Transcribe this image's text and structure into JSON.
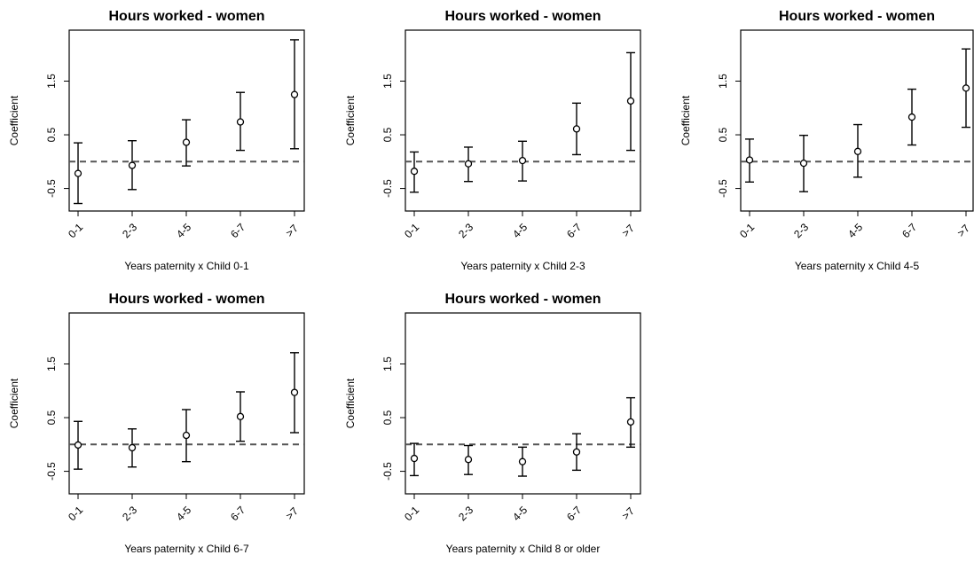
{
  "chart_data": [
    {
      "type": "scatter",
      "title": "Hours worked - women",
      "xlabel": "Years paternity x Child 0-1",
      "ylabel": "Coefficient",
      "categories": [
        "0-1",
        "2-3",
        "4-5",
        "6-7",
        ">7"
      ],
      "yticks": [
        "-0.5",
        "0.5",
        "1.5"
      ],
      "ylim": [
        -0.92,
        2.45
      ],
      "reference_line": 0,
      "values": [
        -0.22,
        -0.07,
        0.36,
        0.74,
        1.25
      ],
      "lower": [
        -0.78,
        -0.52,
        -0.08,
        0.21,
        0.24
      ],
      "upper": [
        0.35,
        0.39,
        0.78,
        1.29,
        2.27
      ]
    },
    {
      "type": "scatter",
      "title": "Hours worked - women",
      "xlabel": "Years paternity x Child 2-3",
      "ylabel": "Coefficient",
      "categories": [
        "0-1",
        "2-3",
        "4-5",
        "6-7",
        ">7"
      ],
      "yticks": [
        "-0.5",
        "0.5",
        "1.5"
      ],
      "ylim": [
        -0.92,
        2.45
      ],
      "reference_line": 0,
      "values": [
        -0.18,
        -0.04,
        0.02,
        0.61,
        1.13
      ],
      "lower": [
        -0.57,
        -0.37,
        -0.36,
        0.13,
        0.21
      ],
      "upper": [
        0.18,
        0.27,
        0.38,
        1.09,
        2.03
      ]
    },
    {
      "type": "scatter",
      "title": "Hours worked - women",
      "xlabel": "Years paternity x Child 4-5",
      "ylabel": "Coefficient",
      "categories": [
        "0-1",
        "2-3",
        "4-5",
        "6-7",
        ">7"
      ],
      "yticks": [
        "-0.5",
        "0.5",
        "1.5"
      ],
      "ylim": [
        -0.92,
        2.45
      ],
      "reference_line": 0,
      "values": [
        0.03,
        -0.03,
        0.19,
        0.83,
        1.37
      ],
      "lower": [
        -0.38,
        -0.56,
        -0.29,
        0.31,
        0.64
      ],
      "upper": [
        0.42,
        0.49,
        0.69,
        1.35,
        2.1
      ]
    },
    {
      "type": "scatter",
      "title": "Hours worked - women",
      "xlabel": "Years paternity x Child 6-7",
      "ylabel": "Coefficient",
      "categories": [
        "0-1",
        "2-3",
        "4-5",
        "6-7",
        ">7"
      ],
      "yticks": [
        "-0.5",
        "0.5",
        "1.5"
      ],
      "ylim": [
        -0.92,
        2.45
      ],
      "reference_line": 0,
      "values": [
        -0.01,
        -0.06,
        0.17,
        0.52,
        0.97
      ],
      "lower": [
        -0.46,
        -0.42,
        -0.32,
        0.06,
        0.22
      ],
      "upper": [
        0.43,
        0.29,
        0.65,
        0.98,
        1.71
      ]
    },
    {
      "type": "scatter",
      "title": "Hours worked - women",
      "xlabel": "Years paternity x Child 8 or older",
      "ylabel": "Coefficient",
      "categories": [
        "0-1",
        "2-3",
        "4-5",
        "6-7",
        ">7"
      ],
      "yticks": [
        "-0.5",
        "0.5",
        "1.5"
      ],
      "ylim": [
        -0.92,
        2.45
      ],
      "reference_line": 0,
      "values": [
        -0.26,
        -0.28,
        -0.32,
        -0.14,
        0.42
      ],
      "lower": [
        -0.58,
        -0.56,
        -0.59,
        -0.48,
        -0.05
      ],
      "upper": [
        0.02,
        -0.02,
        -0.05,
        0.2,
        0.87
      ]
    }
  ]
}
